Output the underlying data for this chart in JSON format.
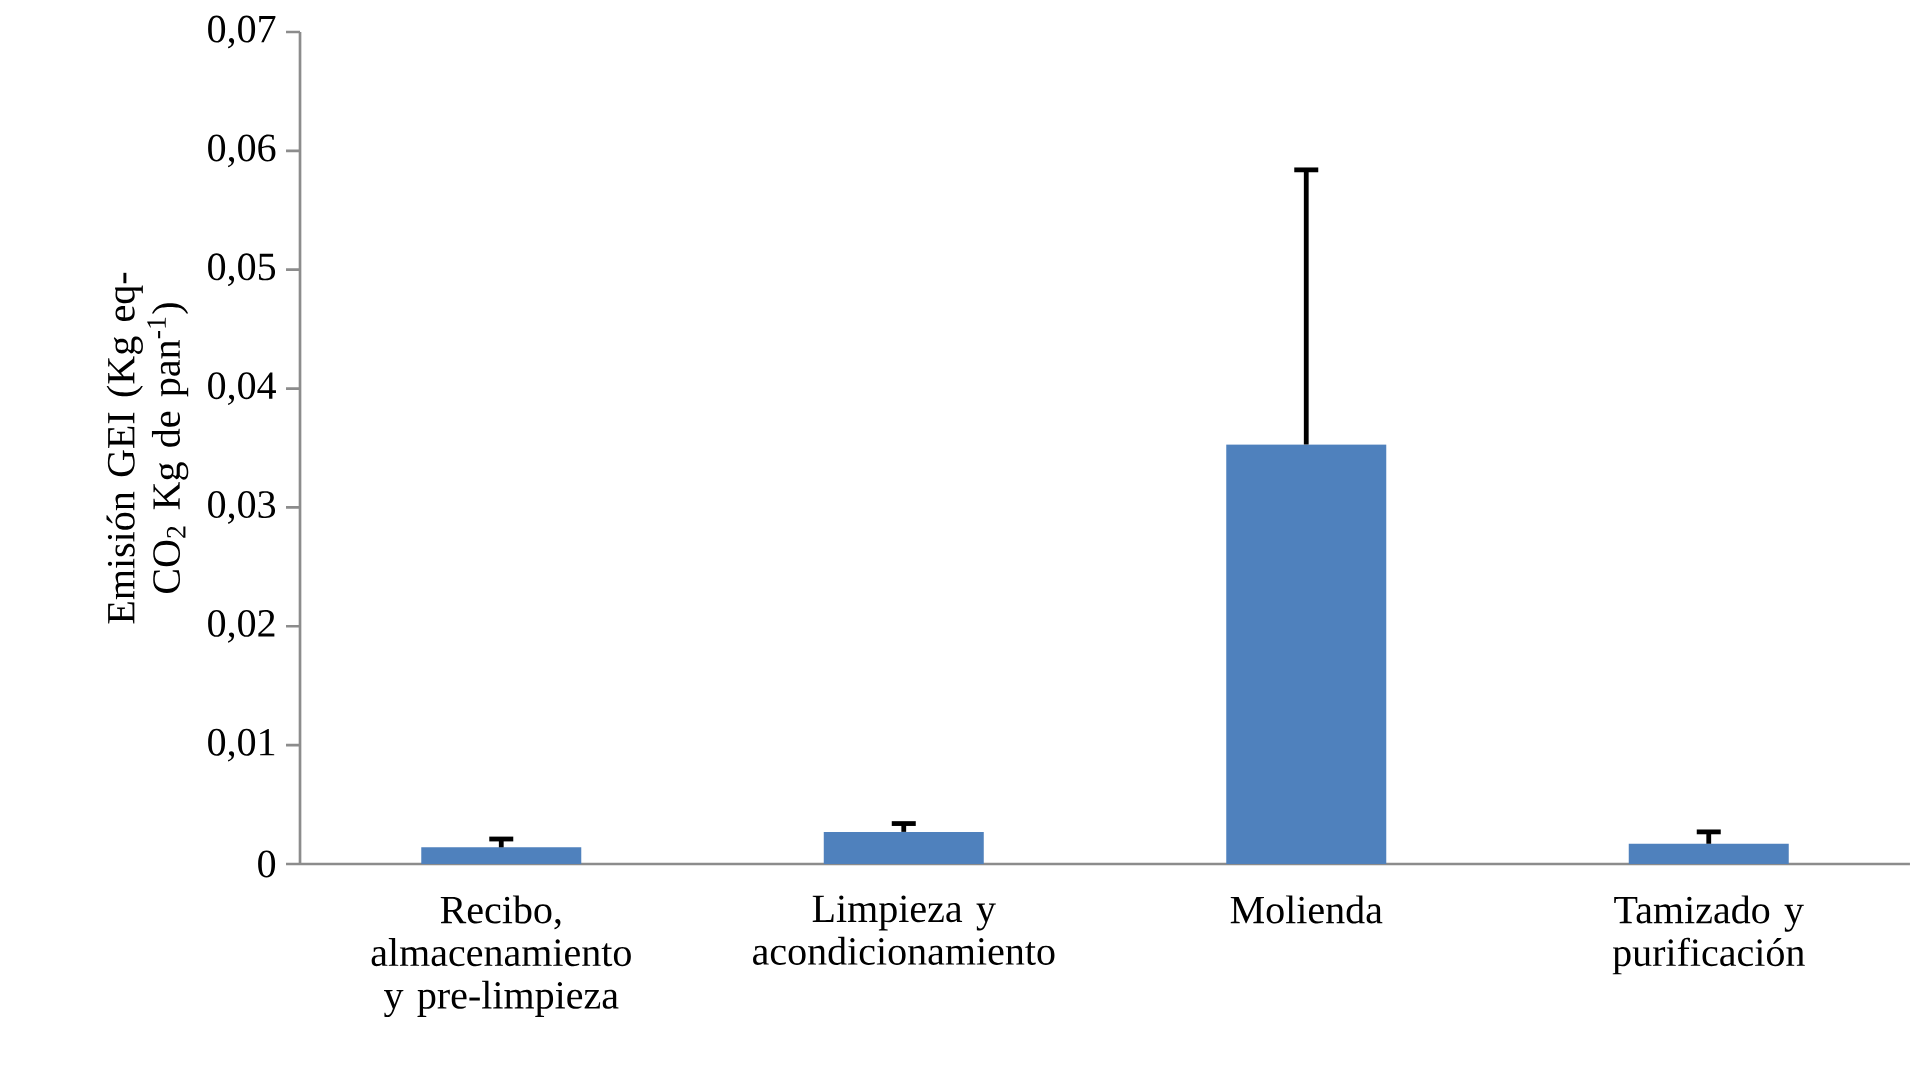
{
  "chart_data": {
    "type": "bar",
    "ylabel": "Emisión GEI (Kg eq-CO$_{2}$ Kg de pan$^{-1}$)",
    "categories": [
      "Recibo, almacenamiento y pre-limpieza",
      "Limpieza y acondicionamiento",
      "Molienda",
      "Tamizado y purificación"
    ],
    "values": [
      0.0014,
      0.0027,
      0.0353,
      0.0017
    ],
    "errors": [
      [
        0.0014,
        0.0021
      ],
      [
        0.0027,
        0.0034
      ],
      [
        0.0353,
        0.0584
      ],
      [
        0.0017,
        0.0027
      ]
    ],
    "color": "#4f81bd",
    "ylim": [
      0,
      0.07
    ],
    "yticks": [
      0,
      {
        "value": 0.01,
        "label": "0,01"
      },
      {
        "value": 0.02,
        "label": "0,02"
      },
      {
        "value": 0.03,
        "label": "0,03"
      },
      {
        "value": 0.04,
        "label": "0,04"
      },
      {
        "value": 0.05,
        "label": "0,05"
      },
      {
        "value": 0.06,
        "label": "0,06"
      },
      {
        "value": 0.07,
        "label": "0,07"
      }
    ],
    "grid": false
  }
}
